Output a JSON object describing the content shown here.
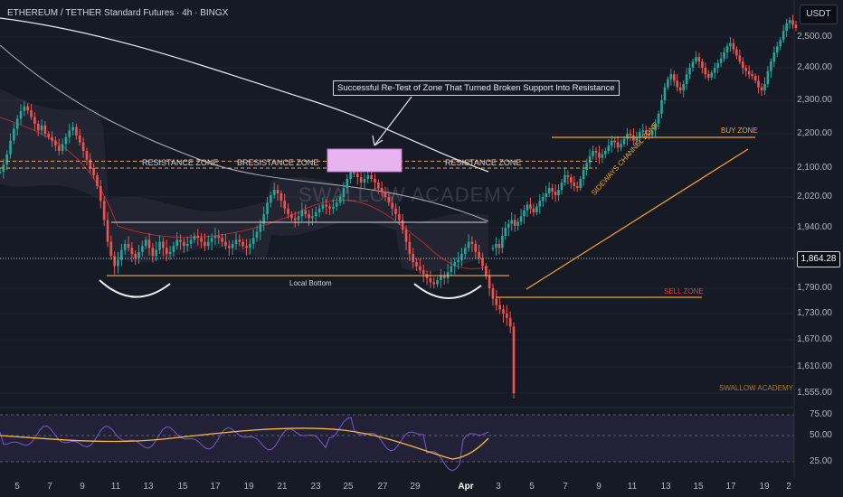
{
  "header": {
    "title": "ETHEREUM / TETHER Standard Futures · 4h · BINGX",
    "currency_badge": "USDT"
  },
  "current_price": "1,864.28",
  "annotations": {
    "callout": "Successful Re-Test of Zone That Turned Broken Support Into Resistance",
    "resistance_left": "RESISTANCE ZONE",
    "resistance_mid": "BRESISTANCE ZONE",
    "resistance_right": "RESISTANCE ZONE",
    "local_bottom": "Local Bottom",
    "buy_zone": "BUY ZONE",
    "sell_zone": "SELL ZONE",
    "sideways": "SIDEWAYS CHANNEL ZONE",
    "watermark": "SWALLOW ACADEMY",
    "brand": "SWALLOW ACADEMY"
  },
  "colors": {
    "up": "#26a69a",
    "down": "#ef5350",
    "orange": "#f7a135",
    "rsi": "#7e57c2",
    "rsi_ma": "#f5b942",
    "sell": "#f23645",
    "zone_fill": "#e8b4f0"
  },
  "chart_data": {
    "type": "line",
    "title": "ETHEREUM / TETHER Standard Futures · 4h · BINGX",
    "y_axis_ticks": [
      "2,500.00",
      "2,400.00",
      "2,300.00",
      "2,200.00",
      "2,100.00",
      "2,020.00",
      "1,940.00",
      "1,864.28",
      "1,790.00",
      "1,730.00",
      "1,670.00",
      "1,610.00",
      "1,555.00"
    ],
    "x_axis_ticks": [
      "5",
      "7",
      "9",
      "11",
      "13",
      "15",
      "17",
      "19",
      "21",
      "23",
      "25",
      "27",
      "29",
      "Apr",
      "3",
      "5",
      "7",
      "9",
      "11",
      "13",
      "15",
      "17",
      "19",
      "2"
    ],
    "rsi_ticks": [
      "75.00",
      "50.00",
      "25.00"
    ],
    "ylim": [
      1555,
      2560
    ],
    "series": [
      {
        "values": [
          2090,
          2110,
          2140,
          2180,
          2215,
          2245,
          2268,
          2282,
          2270,
          2250,
          2230,
          2210,
          2225,
          2200,
          2190,
          2180,
          2165,
          2150,
          2170,
          2190,
          2210,
          2220,
          2195,
          2175,
          2150,
          2125,
          2100,
          2080,
          2050,
          2010,
          1960,
          1905,
          1870,
          1845,
          1860,
          1885,
          1900,
          1890,
          1875,
          1865,
          1880,
          1895,
          1910,
          1890,
          1870,
          1885,
          1905,
          1890,
          1875,
          1880,
          1895,
          1910,
          1905,
          1895,
          1900,
          1910,
          1920,
          1915,
          1905,
          1895,
          1905,
          1915,
          1920,
          1915,
          1905,
          1895,
          1890,
          1900,
          1910,
          1905,
          1895,
          1890,
          1900,
          1915,
          1930,
          1950,
          1975,
          2005,
          2025,
          2040,
          2030,
          2010,
          1990,
          1975,
          1965,
          1960,
          1970,
          1985,
          1975,
          1965,
          1970,
          1980,
          1990,
          2000,
          1995,
          1990,
          1995,
          2005,
          2020,
          2045,
          2070,
          2090,
          2085,
          2075,
          2060,
          2070,
          2080,
          2070,
          2060,
          2045,
          2035,
          2020,
          2005,
          1990,
          1975,
          1960,
          1935,
          1905,
          1875,
          1855,
          1845,
          1835,
          1825,
          1815,
          1805,
          1800,
          1810,
          1820,
          1815,
          1830,
          1845,
          1855,
          1860,
          1875,
          1890,
          1905,
          1900,
          1880,
          1865,
          1845,
          1820,
          1790,
          1765,
          1750,
          1740,
          1730,
          1720,
          1700,
          1555
        ]
      },
      {
        "values": [
          1890,
          1900,
          1890,
          1920,
          1940,
          1950,
          1960,
          1945,
          1955,
          1970,
          1985,
          2000,
          1990,
          1980,
          1995,
          2010,
          2020,
          2030,
          2045,
          2035,
          2025,
          2040,
          2060,
          2080,
          2075,
          2060,
          2050,
          2045,
          2070,
          2095,
          2115,
          2135,
          2150,
          2145,
          2130,
          2140,
          2150,
          2165,
          2180,
          2175,
          2160,
          2170,
          2185,
          2200,
          2195,
          2180,
          2190,
          2205,
          2210,
          2200,
          2195,
          2210,
          2230,
          2260,
          2300,
          2340,
          2365,
          2380,
          2360,
          2340,
          2330,
          2350,
          2380,
          2400,
          2420,
          2435,
          2420,
          2400,
          2380,
          2370,
          2385,
          2400,
          2415,
          2430,
          2450,
          2470,
          2480,
          2460,
          2440,
          2420,
          2400,
          2390,
          2380,
          2375,
          2360,
          2340,
          2330,
          2350,
          2390,
          2420,
          2450,
          2470,
          2490,
          2520,
          2545,
          2555,
          2540,
          2530
        ]
      }
    ],
    "rsi": {
      "range": [
        0,
        100
      ],
      "levels": [
        75,
        50,
        25
      ]
    }
  }
}
